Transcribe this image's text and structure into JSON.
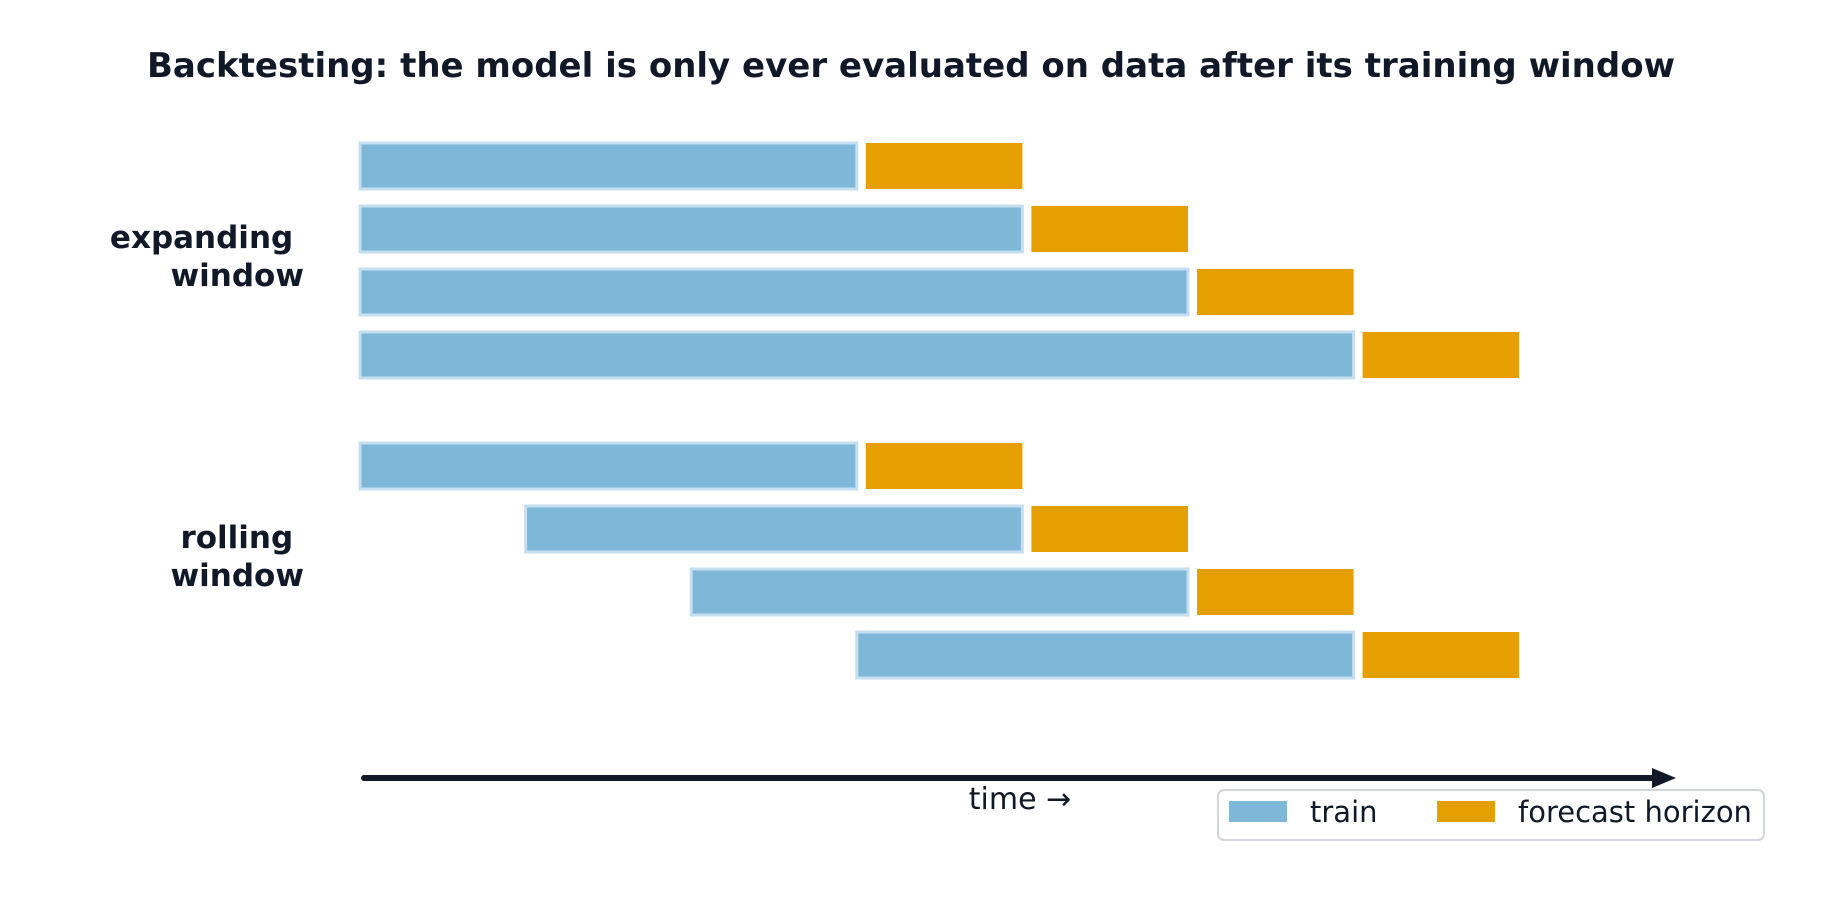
{
  "title": "Backtesting: the model is only ever evaluated on data after its training window",
  "colors": {
    "train": "#7fb7d9",
    "train_border": "#c6dff0",
    "forecast": "#e69f00",
    "text": "#111827",
    "axis": "#111827",
    "legend_border": "#d1d5db"
  },
  "groups": [
    {
      "label_lines": [
        "expanding",
        "window"
      ],
      "windows": [
        {
          "train_start": 0,
          "train_end": 3,
          "forecast_end": 4
        },
        {
          "train_start": 0,
          "train_end": 4,
          "forecast_end": 5
        },
        {
          "train_start": 0,
          "train_end": 5,
          "forecast_end": 6
        },
        {
          "train_start": 0,
          "train_end": 6,
          "forecast_end": 7
        }
      ]
    },
    {
      "label_lines": [
        "rolling",
        "window"
      ],
      "windows": [
        {
          "train_start": 0,
          "train_end": 3,
          "forecast_end": 4
        },
        {
          "train_start": 1,
          "train_end": 4,
          "forecast_end": 5
        },
        {
          "train_start": 2,
          "train_end": 5,
          "forecast_end": 6
        },
        {
          "train_start": 3,
          "train_end": 6,
          "forecast_end": 7
        }
      ]
    }
  ],
  "axis": {
    "label": "time →"
  },
  "legend": {
    "position": "bottom-right",
    "items": [
      {
        "key": "train",
        "label": "train"
      },
      {
        "key": "forecast",
        "label": "forecast horizon"
      }
    ]
  }
}
